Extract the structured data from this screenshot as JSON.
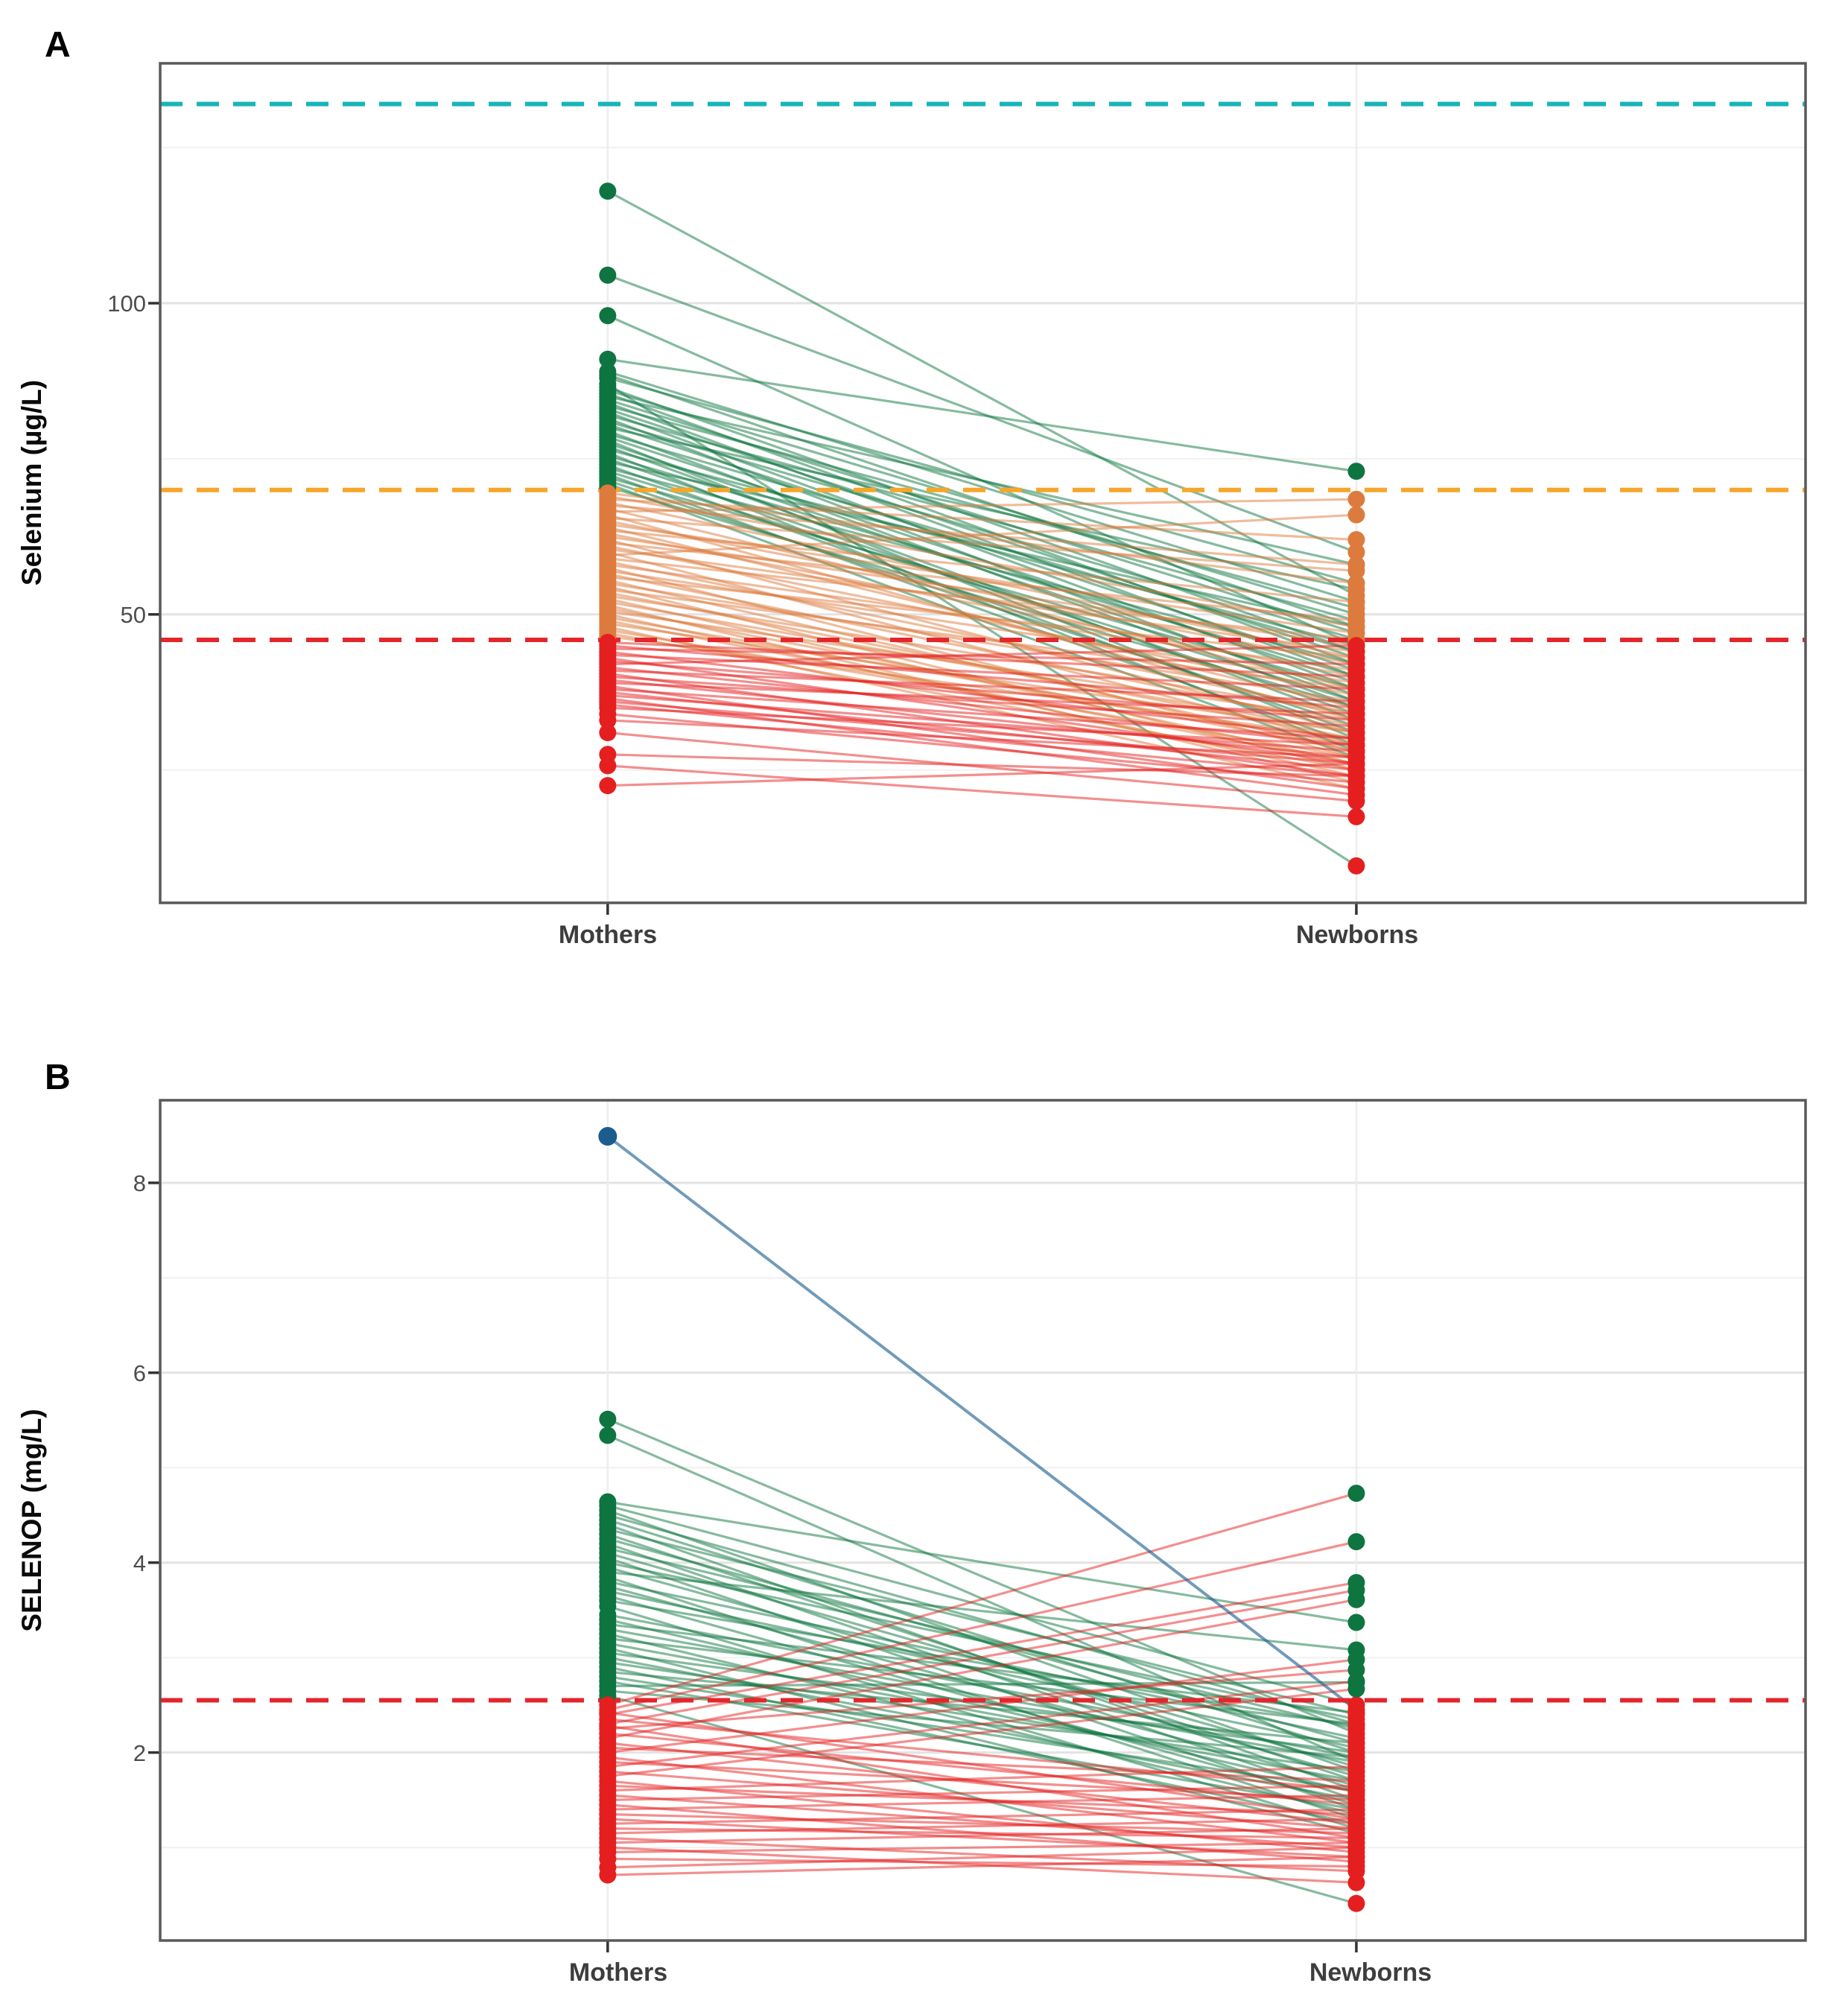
{
  "figure": {
    "description": "Paired slope charts of maternal vs newborn selenium biomarkers",
    "background": "#ffffff"
  },
  "chart_colors": {
    "green": "#0e7540",
    "orange": "#dd7b3e",
    "red": "#e51f1f",
    "blue": "#1c5d8f",
    "ref_cyan": "#17b5b8",
    "ref_amber": "#f5a62b",
    "ref_red": "#e3262c",
    "grid_major": "#e3e3e3",
    "grid_minor": "#f2f2f2",
    "grid_vertical": "#ededed",
    "panel_border": "#595959",
    "tick_mark": "#333333"
  },
  "chart_data": [
    {
      "type": "line",
      "panel_label": "A",
      "ylabel": "Selenium (µg/L)",
      "xlabel": "",
      "categories": [
        "Mothers",
        "Newborns"
      ],
      "ylim": [
        3.66,
        138.54
      ],
      "grid": true,
      "legend": "none",
      "y_axis": {
        "ticks": [
          100,
          50
        ],
        "tick_labels": [
          "100",
          "50"
        ],
        "minor": [
          125,
          75,
          25
        ]
      },
      "x_axis": {
        "categories": [
          "Mothers",
          "Newborns"
        ]
      },
      "ref_lines": [
        {
          "name": "upper-reference-line",
          "value": 132,
          "color_key": "ref_cyan"
        },
        {
          "name": "optimal-reference-line",
          "value": 70,
          "color_key": "ref_amber"
        },
        {
          "name": "deficiency-cutoff-line",
          "value": 45.9,
          "color_key": "ref_red"
        }
      ],
      "color_rules": {
        "green_min": 70,
        "red_below": 45.9
      },
      "pairs": [
        [
          118,
          53
        ],
        [
          104.5,
          60
        ],
        [
          98,
          45
        ],
        [
          91,
          73
        ],
        [
          89,
          52
        ],
        [
          88.5,
          48
        ],
        [
          88,
          55
        ],
        [
          87,
          9.6
        ],
        [
          86.5,
          44
        ],
        [
          86,
          50
        ],
        [
          85.5,
          42
        ],
        [
          85,
          58
        ],
        [
          84.5,
          47
        ],
        [
          84,
          40
        ],
        [
          83.5,
          51
        ],
        [
          83,
          43
        ],
        [
          82.5,
          38
        ],
        [
          82,
          49
        ],
        [
          81.5,
          36
        ],
        [
          81,
          46
        ],
        [
          80.5,
          41
        ],
        [
          80,
          54
        ],
        [
          79.5,
          35
        ],
        [
          79,
          44
        ],
        [
          78.5,
          39
        ],
        [
          78,
          30
        ],
        [
          77.5,
          37
        ],
        [
          77,
          33
        ],
        [
          76.5,
          45
        ],
        [
          76,
          28
        ],
        [
          75.5,
          40
        ],
        [
          75,
          34
        ],
        [
          74.5,
          48
        ],
        [
          74,
          31
        ],
        [
          73.5,
          42
        ],
        [
          73,
          36
        ],
        [
          72.5,
          29
        ],
        [
          72,
          38
        ],
        [
          71.5,
          32
        ],
        [
          71,
          27
        ],
        [
          70.5,
          35
        ],
        [
          69.5,
          55
        ],
        [
          69,
          48
        ],
        [
          68.5,
          62
        ],
        [
          68,
          43
        ],
        [
          67.5,
          58
        ],
        [
          67,
          38
        ],
        [
          66.5,
          68.5
        ],
        [
          66,
          33
        ],
        [
          65.5,
          57
        ],
        [
          65,
          42
        ],
        [
          64.5,
          47
        ],
        [
          64,
          35
        ],
        [
          63.5,
          52
        ],
        [
          63,
          40
        ],
        [
          62.5,
          45
        ],
        [
          62,
          31
        ],
        [
          61.5,
          49
        ],
        [
          61,
          37
        ],
        [
          60.5,
          44
        ],
        [
          60,
          29
        ],
        [
          59.5,
          66
        ],
        [
          59,
          46
        ],
        [
          58.5,
          34
        ],
        [
          58,
          41
        ],
        [
          57.5,
          27
        ],
        [
          57,
          39
        ],
        [
          56.5,
          32
        ],
        [
          56,
          43
        ],
        [
          55.5,
          28
        ],
        [
          55,
          36
        ],
        [
          54.5,
          25
        ],
        [
          54,
          38
        ],
        [
          53.5,
          30
        ],
        [
          53,
          34
        ],
        [
          52.5,
          26
        ],
        [
          52,
          31
        ],
        [
          51.5,
          23
        ],
        [
          51,
          28
        ],
        [
          50.5,
          33
        ],
        [
          50,
          24
        ],
        [
          49.5,
          29
        ],
        [
          49,
          26
        ],
        [
          48.5,
          31
        ],
        [
          48,
          22
        ],
        [
          47.5,
          27
        ],
        [
          47,
          25
        ],
        [
          46.5,
          30
        ],
        [
          45.5,
          40
        ],
        [
          45,
          35
        ],
        [
          44.5,
          42
        ],
        [
          44,
          30
        ],
        [
          43.5,
          38
        ],
        [
          43,
          26
        ],
        [
          42.5,
          33
        ],
        [
          42,
          45
        ],
        [
          41.5,
          29
        ],
        [
          41,
          36
        ],
        [
          40.5,
          24
        ],
        [
          40,
          32
        ],
        [
          39.5,
          27
        ],
        [
          39,
          34
        ],
        [
          38.5,
          22
        ],
        [
          38,
          30
        ],
        [
          37.5,
          25
        ],
        [
          37,
          28
        ],
        [
          36.5,
          21
        ],
        [
          36,
          26
        ],
        [
          35.5,
          24
        ],
        [
          35,
          29
        ],
        [
          34,
          23
        ],
        [
          33,
          27
        ],
        [
          31,
          20
        ],
        [
          27.5,
          24
        ],
        [
          25.7,
          17.5
        ],
        [
          22.5,
          26
        ]
      ],
      "outlier_pair": null
    },
    {
      "type": "line",
      "panel_label": "B",
      "ylabel": "SELENOP (mg/L)",
      "xlabel": "",
      "categories": [
        "Mothers",
        "Newborns"
      ],
      "ylim": [
        0.02,
        8.87
      ],
      "grid": true,
      "legend": "none",
      "y_axis": {
        "ticks": [
          8,
          6,
          4,
          2
        ],
        "tick_labels": [
          "8",
          "6",
          "4",
          "2"
        ],
        "minor": [
          7,
          5,
          3,
          1
        ]
      },
      "x_axis": {
        "categories": [
          "Mothers",
          "Newborns"
        ]
      },
      "ref_lines": [
        {
          "name": "deficiency-cutoff-line",
          "value": 2.55,
          "color_key": "ref_red"
        }
      ],
      "color_rules": {
        "green_min": 2.55,
        "red_below": 2.55
      },
      "pairs": [
        [
          5.51,
          2.2
        ],
        [
          5.34,
          1.9
        ],
        [
          4.64,
          3.37
        ],
        [
          4.6,
          2.5
        ],
        [
          4.55,
          1.8
        ],
        [
          4.5,
          2.3
        ],
        [
          4.45,
          2.0
        ],
        [
          4.4,
          1.6
        ],
        [
          4.35,
          2.4
        ],
        [
          4.3,
          1.7
        ],
        [
          4.25,
          2.1
        ],
        [
          4.2,
          1.5
        ],
        [
          4.15,
          2.25
        ],
        [
          4.1,
          1.85
        ],
        [
          4.05,
          1.4
        ],
        [
          4.0,
          2.35
        ],
        [
          3.95,
          1.75
        ],
        [
          3.9,
          3.08
        ],
        [
          3.85,
          1.3
        ],
        [
          3.8,
          2.15
        ],
        [
          3.75,
          1.65
        ],
        [
          3.7,
          2.05
        ],
        [
          3.65,
          1.45
        ],
        [
          3.6,
          2.28
        ],
        [
          3.54,
          1.2
        ],
        [
          3.45,
          1.95
        ],
        [
          3.4,
          1.58
        ],
        [
          3.35,
          2.42
        ],
        [
          3.3,
          1.9
        ],
        [
          3.25,
          1.35
        ],
        [
          3.2,
          2.3
        ],
        [
          3.15,
          1.7
        ],
        [
          3.1,
          1.15
        ],
        [
          3.05,
          2.0
        ],
        [
          3.0,
          1.5
        ],
        [
          2.95,
          1.8
        ],
        [
          2.9,
          1.25
        ],
        [
          2.85,
          2.1
        ],
        [
          2.8,
          1.6
        ],
        [
          2.75,
          1.4
        ],
        [
          2.7,
          2.74
        ],
        [
          2.65,
          1.95
        ],
        [
          2.6,
          0.41
        ],
        [
          2.5,
          4.73
        ],
        [
          2.45,
          4.22
        ],
        [
          2.42,
          1.3
        ],
        [
          2.4,
          3.79
        ],
        [
          2.35,
          1.6
        ],
        [
          2.3,
          3.71
        ],
        [
          2.28,
          1.1
        ],
        [
          2.25,
          2.87
        ],
        [
          2.2,
          1.45
        ],
        [
          2.15,
          3.61
        ],
        [
          2.1,
          1.25
        ],
        [
          2.05,
          1.7
        ],
        [
          2.0,
          2.98
        ],
        [
          1.95,
          1.05
        ],
        [
          1.9,
          1.5
        ],
        [
          1.85,
          2.75
        ],
        [
          1.8,
          1.2
        ],
        [
          1.75,
          2.67
        ],
        [
          1.7,
          0.95
        ],
        [
          1.65,
          1.35
        ],
        [
          1.6,
          1.85
        ],
        [
          1.55,
          1.0
        ],
        [
          1.5,
          1.65
        ],
        [
          1.45,
          0.85
        ],
        [
          1.4,
          1.55
        ],
        [
          1.35,
          1.15
        ],
        [
          1.3,
          0.9
        ],
        [
          1.25,
          1.4
        ],
        [
          1.2,
          1.1
        ],
        [
          1.15,
          1.3
        ],
        [
          1.1,
          0.75
        ],
        [
          1.05,
          1.2
        ],
        [
          1.0,
          0.63
        ],
        [
          0.95,
          1.05
        ],
        [
          0.88,
          0.8
        ],
        [
          0.79,
          1.0
        ],
        [
          0.71,
          0.9
        ]
      ],
      "outlier_pair": {
        "mother": 8.49,
        "newborn": 2.45,
        "color_key": "blue"
      }
    }
  ]
}
